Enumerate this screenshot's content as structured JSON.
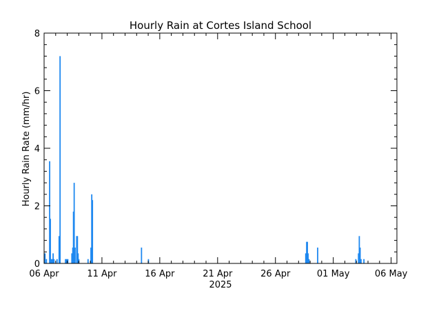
{
  "chart_data": {
    "type": "bar",
    "title": "Hourly Rain at Cortes Island School",
    "ylabel": "Hourly Rain Rate (mm/hr)",
    "xlabel": "2025",
    "ylim": [
      0,
      8
    ],
    "yticks": [
      0,
      2,
      4,
      6,
      8
    ],
    "y_minor_step": 0.4,
    "x_range_days": [
      0,
      30.5
    ],
    "x_tick_labels": [
      "06 Apr",
      "11 Apr",
      "16 Apr",
      "21 Apr",
      "26 Apr",
      "01 May",
      "06 May"
    ],
    "x_tick_days": [
      0,
      5,
      10,
      15,
      20,
      25,
      30
    ],
    "x_minor_step_days": 1,
    "grid": false,
    "bar_color": "#1e88f0",
    "series": [
      {
        "values": [
          [
            0.08,
            0.35
          ],
          [
            0.2,
            0.15
          ],
          [
            0.48,
            3.55
          ],
          [
            0.54,
            1.55
          ],
          [
            0.6,
            0.15
          ],
          [
            0.7,
            0.15
          ],
          [
            0.78,
            0.35
          ],
          [
            0.85,
            0.15
          ],
          [
            1.12,
            0.15
          ],
          [
            1.3,
            0.95
          ],
          [
            1.38,
            7.2
          ],
          [
            1.85,
            0.15
          ],
          [
            1.95,
            0.15
          ],
          [
            2.05,
            0.15
          ],
          [
            2.4,
            0.35
          ],
          [
            2.48,
            0.55
          ],
          [
            2.54,
            1.8
          ],
          [
            2.6,
            2.8
          ],
          [
            2.68,
            0.55
          ],
          [
            2.82,
            0.95
          ],
          [
            2.88,
            0.95
          ],
          [
            2.94,
            0.35
          ],
          [
            3.0,
            0.15
          ],
          [
            3.8,
            0.15
          ],
          [
            4.05,
            0.55
          ],
          [
            4.12,
            2.4
          ],
          [
            4.18,
            2.2
          ],
          [
            8.42,
            0.55
          ],
          [
            9.02,
            0.15
          ],
          [
            22.62,
            0.35
          ],
          [
            22.7,
            0.75
          ],
          [
            22.76,
            0.75
          ],
          [
            22.82,
            0.35
          ],
          [
            22.9,
            0.15
          ],
          [
            23.65,
            0.55
          ],
          [
            26.95,
            0.15
          ],
          [
            27.18,
            0.35
          ],
          [
            27.25,
            0.95
          ],
          [
            27.32,
            0.55
          ],
          [
            27.4,
            0.15
          ],
          [
            27.65,
            0.15
          ]
        ]
      }
    ]
  }
}
